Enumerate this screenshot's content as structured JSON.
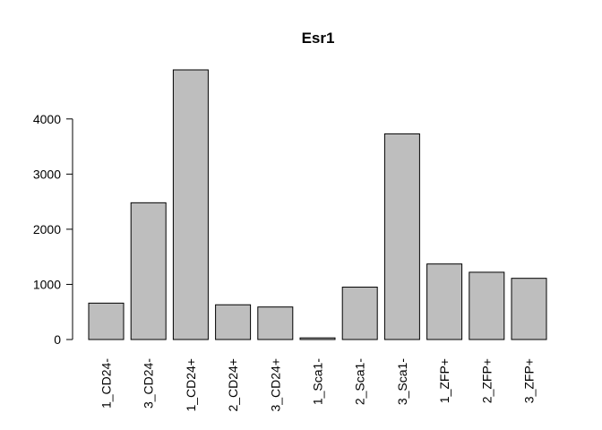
{
  "chart_data": {
    "type": "bar",
    "title": "Esr1",
    "xlabel": "",
    "ylabel": "",
    "categories": [
      "1_CD24-",
      "3_CD24-",
      "1_CD24+",
      "2_CD24+",
      "3_CD24+",
      "1_Sca1-",
      "2_Sca1-",
      "3_Sca1-",
      "1_ZFP+",
      "2_ZFP+",
      "3_ZFP+"
    ],
    "values": [
      660,
      2480,
      4890,
      630,
      590,
      30,
      950,
      3730,
      1370,
      1220,
      1110
    ],
    "ylim": [
      0,
      4890
    ],
    "yticks": [
      0,
      1000,
      2000,
      3000,
      4000
    ],
    "ytick_labels": [
      "0",
      "1000",
      "2000",
      "3000",
      "4000"
    ],
    "bar_color": "#bebebe",
    "grid": false,
    "legend": "none"
  }
}
